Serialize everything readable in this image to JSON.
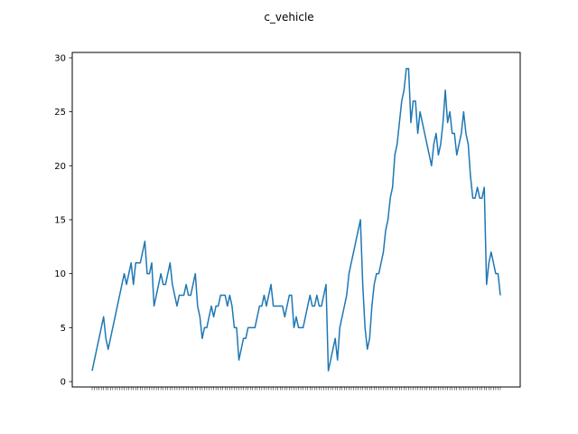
{
  "chart_data": {
    "type": "line",
    "title": "c_vehicle",
    "xlabel": "",
    "ylabel": "",
    "ylim": [
      -0.5,
      30.5
    ],
    "y_ticks": [
      0,
      5,
      10,
      15,
      20,
      25,
      30
    ],
    "grid": false,
    "legend": "none",
    "line_color": "#1f77b4",
    "series": [
      {
        "values": [
          1,
          2,
          3,
          4,
          5,
          6,
          4,
          3,
          4,
          5,
          6,
          7,
          8,
          9,
          10,
          9,
          10,
          11,
          9,
          11,
          11,
          11,
          12,
          13,
          10,
          10,
          11,
          7,
          8,
          9,
          10,
          9,
          9,
          10,
          11,
          9,
          8,
          7,
          8,
          8,
          8,
          9,
          8,
          8,
          9,
          10,
          7,
          6,
          4,
          5,
          5,
          6,
          7,
          6,
          7,
          7,
          8,
          8,
          8,
          7,
          8,
          7,
          5,
          5,
          2,
          3,
          4,
          4,
          5,
          5,
          5,
          5,
          6,
          7,
          7,
          8,
          7,
          8,
          9,
          7,
          7,
          7,
          7,
          7,
          6,
          7,
          8,
          8,
          5,
          6,
          5,
          5,
          5,
          6,
          7,
          8,
          7,
          7,
          8,
          7,
          7,
          8,
          9,
          1,
          2,
          3,
          4,
          2,
          5,
          6,
          7,
          8,
          10,
          11,
          12,
          13,
          14,
          15,
          9,
          5,
          3,
          4,
          7,
          9,
          10,
          10,
          11,
          12,
          14,
          15,
          17,
          18,
          21,
          22,
          24,
          26,
          27,
          29,
          29,
          24,
          26,
          26,
          23,
          25,
          24,
          23,
          22,
          21,
          20,
          22,
          23,
          21,
          22,
          24,
          27,
          24,
          25,
          23,
          23,
          21,
          22,
          23,
          25,
          23,
          22,
          19,
          17,
          17,
          18,
          17,
          17,
          18,
          9,
          11,
          12,
          11,
          10,
          10,
          8
        ]
      }
    ]
  }
}
